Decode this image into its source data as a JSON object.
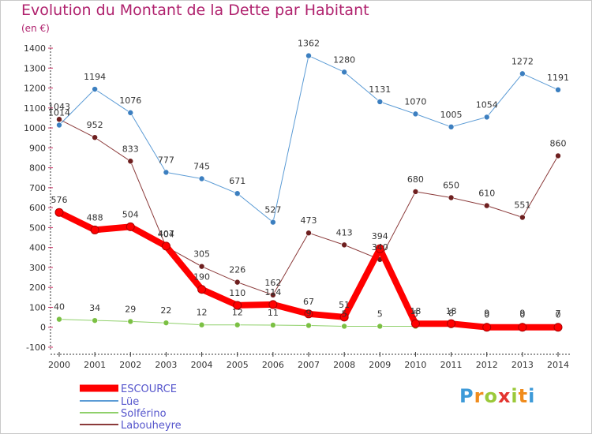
{
  "title": "Evolution du Montant de la Dette par Habitant",
  "subtitle": "(en €)",
  "logo": "Proxiti",
  "chart_data": {
    "type": "line",
    "title": "Evolution du Montant de la Dette par Habitant",
    "subtitle": "(en €)",
    "categories": [
      "2000",
      "2001",
      "2002",
      "2003",
      "2004",
      "2005",
      "2006",
      "2007",
      "2008",
      "2009",
      "2010",
      "2011",
      "2012",
      "2013",
      "2014"
    ],
    "yticks": [
      -100,
      0,
      100,
      200,
      300,
      400,
      500,
      600,
      700,
      800,
      900,
      1000,
      1100,
      1200,
      1300,
      1400
    ],
    "ylim": [
      -100,
      1400
    ],
    "grid": false,
    "legend_position": "bottom-left",
    "series": [
      {
        "name": "ESCOURCE",
        "values": [
          576,
          488,
          504,
          407,
          190,
          110,
          114,
          67,
          51,
          394,
          18,
          18,
          0,
          0,
          0
        ],
        "color": "#ff0000",
        "marker": "#ff0000",
        "width": 8
      },
      {
        "name": "Lüe",
        "values": [
          1014,
          1194,
          1076,
          777,
          745,
          671,
          527,
          1362,
          1280,
          1131,
          1070,
          1005,
          1054,
          1272,
          1191
        ],
        "color": "#5b9bd5",
        "marker": "#3c7fc0",
        "width": 1
      },
      {
        "name": "Solférino",
        "values": [
          40,
          34,
          29,
          22,
          12,
          12,
          11,
          9,
          5,
          5,
          5,
          8,
          9,
          9,
          7
        ],
        "color": "#8fd06a",
        "marker": "#7bc043",
        "width": 1
      },
      {
        "name": "Labouheyre",
        "values": [
          1043,
          952,
          833,
          404,
          305,
          226,
          162,
          473,
          413,
          340,
          680,
          650,
          610,
          551,
          860
        ],
        "color": "#8b3a3a",
        "marker": "#6e1f1f",
        "width": 1
      }
    ],
    "labels": {
      "ESCOURCE": [
        "576",
        "488",
        "504",
        "407",
        "190",
        "110",
        "114",
        "67",
        "51",
        "394",
        "18",
        "18",
        "0",
        "0",
        "0"
      ],
      "Lüe": [
        "1014",
        "1194",
        "1076",
        "777",
        "745",
        "671",
        "527",
        "1362",
        "1280",
        "1131",
        "1070",
        "1005",
        "1054",
        "1272",
        "1191"
      ],
      "Solférino": [
        "40",
        "34",
        "29",
        "22",
        "12",
        "12",
        "11",
        "9",
        "5",
        "5",
        "5",
        "8",
        "9",
        "9",
        "7"
      ],
      "Labouheyre": [
        "1043",
        "952",
        "833",
        "404",
        "305",
        "226",
        "162",
        "473",
        "413",
        "340",
        "680",
        "650",
        "610",
        "551",
        "860"
      ]
    }
  }
}
